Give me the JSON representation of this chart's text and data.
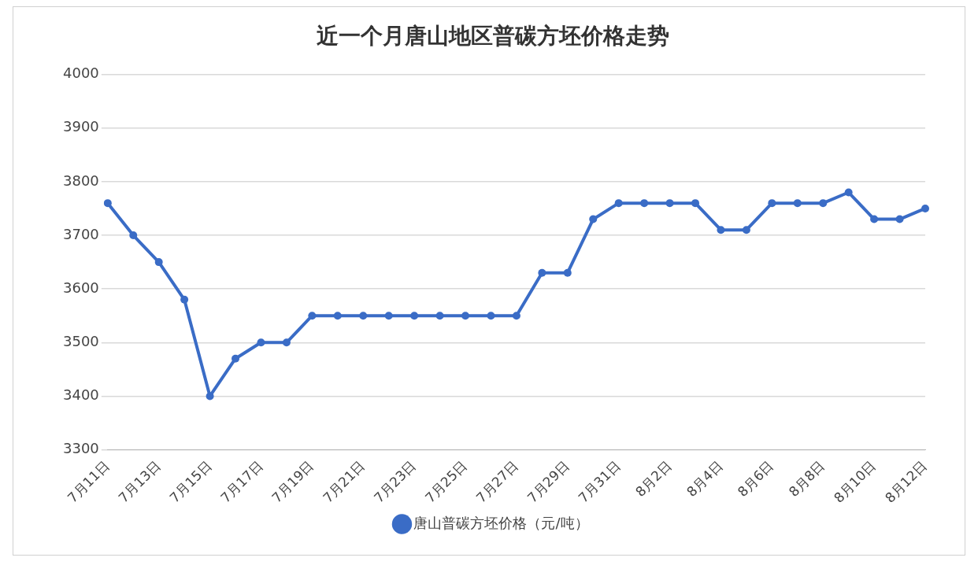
{
  "chart_data": {
    "type": "line",
    "title": "近一个月唐山地区普碳方坯价格走势",
    "categories": [
      "7月11日",
      null,
      "7月13日",
      null,
      "7月15日",
      null,
      "7月17日",
      null,
      "7月19日",
      null,
      "7月21日",
      null,
      "7月23日",
      null,
      "7月25日",
      null,
      "7月27日",
      null,
      "7月29日",
      null,
      "7月31日",
      null,
      "8月2日",
      null,
      "8月4日",
      null,
      "8月6日",
      null,
      "8月8日",
      null,
      "8月10日",
      null,
      "8月12日"
    ],
    "series": [
      {
        "name": "唐山普碳方坯价格（元/吨）",
        "color": "#3a6cc6",
        "values": [
          3760,
          3700,
          3650,
          3580,
          3400,
          3470,
          3500,
          3500,
          3550,
          3550,
          3550,
          3550,
          3550,
          3550,
          3550,
          3550,
          3550,
          3630,
          3630,
          3730,
          3760,
          3760,
          3760,
          3760,
          3710,
          3710,
          3760,
          3760,
          3760,
          3780,
          3730,
          3730,
          3750
        ]
      }
    ],
    "ylim": [
      3300,
      4000
    ],
    "yticks": [
      3300,
      3400,
      3500,
      3600,
      3700,
      3800,
      3900,
      4000
    ],
    "grid": "y",
    "legend": "bottom",
    "marker": "circle",
    "line_style": "solid"
  }
}
